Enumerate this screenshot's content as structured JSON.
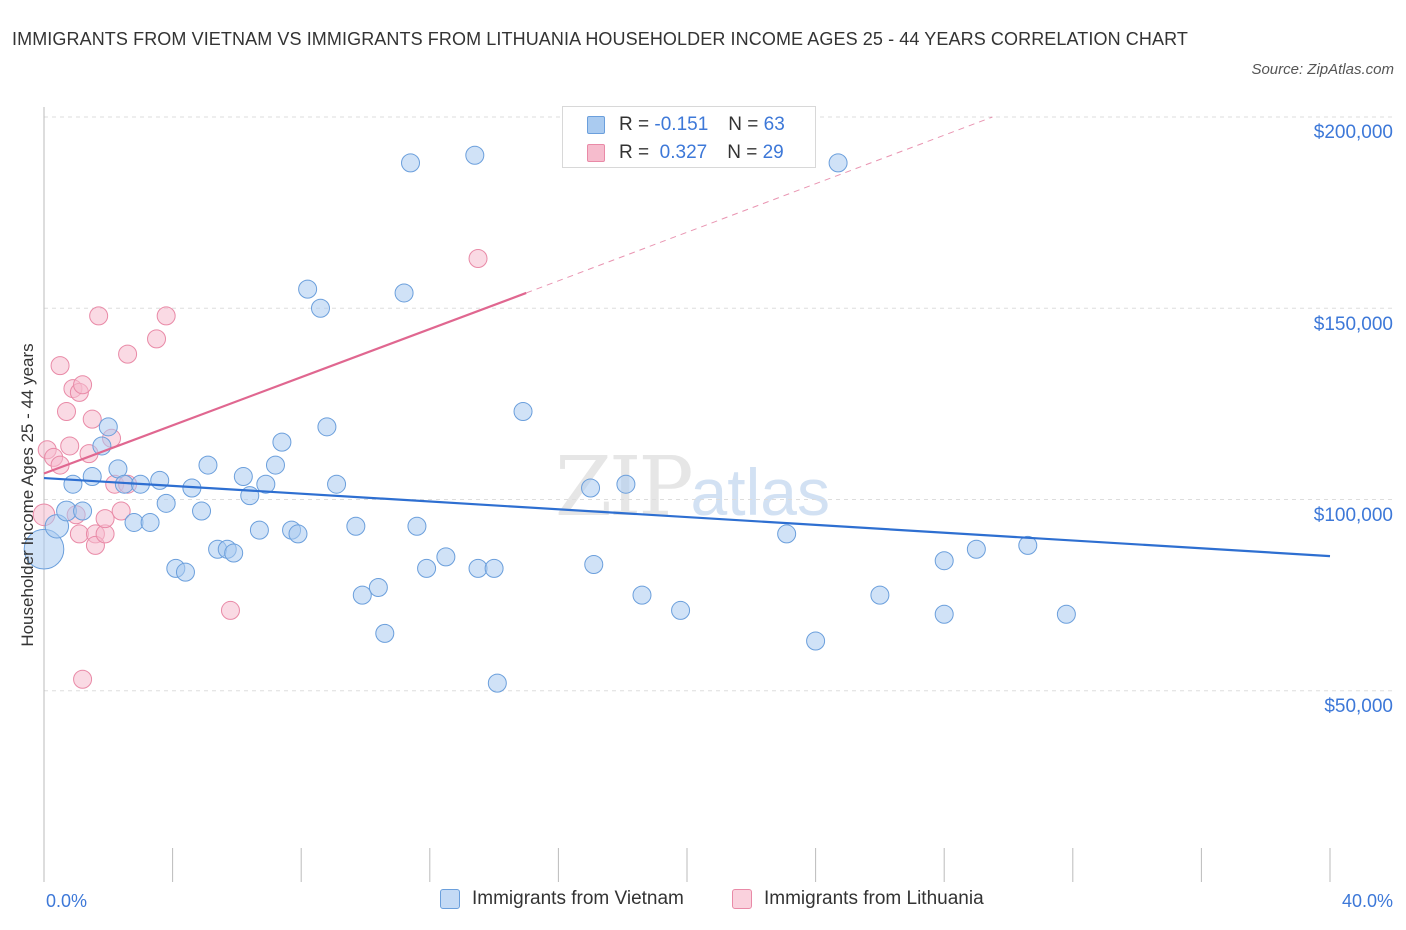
{
  "title": "IMMIGRANTS FROM VIETNAM VS IMMIGRANTS FROM LITHUANIA HOUSEHOLDER INCOME AGES 25 - 44 YEARS CORRELATION CHART",
  "source": "Source: ZipAtlas.com",
  "watermark": {
    "zip": "ZIP",
    "atlas": "atlas"
  },
  "legend_top": {
    "rows": [
      {
        "r_label": "R =",
        "r_value": "-0.151",
        "n_label": "N =",
        "n_value": "63"
      },
      {
        "r_label": "R =",
        "r_value": "0.327",
        "n_label": "N =",
        "n_value": "29"
      }
    ]
  },
  "legend_bottom": {
    "items": [
      {
        "label": "Immigrants from Vietnam"
      },
      {
        "label": "Immigrants from Lithuania"
      }
    ]
  },
  "colors": {
    "vietnam_fill": "#aacbf0",
    "vietnam_stroke": "#6b9fdc",
    "vietnam_line": "#2e6fd1",
    "lithuania_fill": "#f6bccd",
    "lithuania_stroke": "#e98aa7",
    "lithuania_line": "#e06790",
    "axis_text": "#3d78d8",
    "grid": "#dddddd"
  },
  "chart_data": {
    "type": "scatter",
    "title": "IMMIGRANTS FROM VIETNAM VS IMMIGRANTS FROM LITHUANIA HOUSEHOLDER INCOME AGES 25 - 44 YEARS CORRELATION CHART",
    "xlabel": "",
    "ylabel": "Householder Income Ages 25 - 44 years",
    "xlim": [
      0,
      40
    ],
    "ylim": [
      0,
      200000
    ],
    "x_tick_labels": [
      "0.0%",
      "40.0%"
    ],
    "y_ticks": [
      50000,
      100000,
      150000,
      200000
    ],
    "y_tick_labels": [
      "$50,000",
      "$100,000",
      "$150,000",
      "$200,000"
    ],
    "grid": true,
    "legend_position": "top-center",
    "series": [
      {
        "name": "Immigrants from Vietnam",
        "r": -0.151,
        "n": 63,
        "trend": {
          "x": [
            0,
            40
          ],
          "y": [
            105600,
            85200
          ]
        },
        "points": [
          [
            0.0,
            87000,
            2.2
          ],
          [
            0.4,
            93000,
            1.3
          ],
          [
            0.7,
            97000,
            1.1
          ],
          [
            0.9,
            104000,
            1.0
          ],
          [
            1.2,
            97000,
            1.0
          ],
          [
            1.5,
            106000,
            1.0
          ],
          [
            1.8,
            114000,
            1.0
          ],
          [
            2.0,
            119000,
            1.0
          ],
          [
            2.3,
            108000,
            1.0
          ],
          [
            2.5,
            104000,
            1.0
          ],
          [
            2.8,
            94000,
            1.0
          ],
          [
            3.0,
            104000,
            1.0
          ],
          [
            3.3,
            94000,
            1.0
          ],
          [
            3.6,
            105000,
            1.0
          ],
          [
            3.8,
            99000,
            1.0
          ],
          [
            4.1,
            82000,
            1.0
          ],
          [
            4.4,
            81000,
            1.0
          ],
          [
            4.6,
            103000,
            1.0
          ],
          [
            4.9,
            97000,
            1.0
          ],
          [
            5.1,
            109000,
            1.0
          ],
          [
            5.4,
            87000,
            1.0
          ],
          [
            5.7,
            87000,
            1.0
          ],
          [
            5.9,
            86000,
            1.0
          ],
          [
            6.2,
            106000,
            1.0
          ],
          [
            6.4,
            101000,
            1.0
          ],
          [
            6.7,
            92000,
            1.0
          ],
          [
            6.9,
            104000,
            1.0
          ],
          [
            7.2,
            109000,
            1.0
          ],
          [
            7.4,
            115000,
            1.0
          ],
          [
            7.7,
            92000,
            1.0
          ],
          [
            7.9,
            91000,
            1.0
          ],
          [
            8.2,
            155000,
            1.0
          ],
          [
            8.6,
            150000,
            1.0
          ],
          [
            8.8,
            119000,
            1.0
          ],
          [
            9.1,
            104000,
            1.0
          ],
          [
            9.7,
            93000,
            1.0
          ],
          [
            9.9,
            75000,
            1.0
          ],
          [
            10.4,
            77000,
            1.0
          ],
          [
            10.6,
            65000,
            1.0
          ],
          [
            11.2,
            154000,
            1.0
          ],
          [
            11.4,
            188000,
            1.0
          ],
          [
            11.6,
            93000,
            1.0
          ],
          [
            11.9,
            82000,
            1.0
          ],
          [
            12.5,
            85000,
            1.0
          ],
          [
            13.4,
            190000,
            1.0
          ],
          [
            13.5,
            82000,
            1.0
          ],
          [
            14.0,
            82000,
            1.0
          ],
          [
            14.1,
            52000,
            1.0
          ],
          [
            14.9,
            123000,
            1.0
          ],
          [
            17.0,
            103000,
            1.0
          ],
          [
            17.1,
            83000,
            1.0
          ],
          [
            18.1,
            104000,
            1.0
          ],
          [
            18.6,
            75000,
            1.0
          ],
          [
            19.8,
            71000,
            1.0
          ],
          [
            23.1,
            91000,
            1.0
          ],
          [
            24.0,
            63000,
            1.0
          ],
          [
            24.7,
            188000,
            1.0
          ],
          [
            26.0,
            75000,
            1.0
          ],
          [
            28.0,
            84000,
            1.0
          ],
          [
            28.0,
            70000,
            1.0
          ],
          [
            29.0,
            87000,
            1.0
          ],
          [
            30.6,
            88000,
            1.0
          ],
          [
            31.8,
            70000,
            1.0
          ]
        ]
      },
      {
        "name": "Immigrants from Lithuania",
        "r": 0.327,
        "n": 29,
        "trend": {
          "x": [
            0,
            15
          ],
          "y": [
            106800,
            154000
          ],
          "dashed_to": {
            "x": 29.5,
            "y": 200000
          }
        },
        "points": [
          [
            0.0,
            96000,
            1.2
          ],
          [
            0.1,
            113000,
            1.0
          ],
          [
            0.3,
            111000,
            1.0
          ],
          [
            0.5,
            109000,
            1.0
          ],
          [
            0.5,
            135000,
            1.0
          ],
          [
            0.7,
            123000,
            1.0
          ],
          [
            0.8,
            114000,
            1.0
          ],
          [
            0.9,
            129000,
            1.0
          ],
          [
            1.0,
            96000,
            1.0
          ],
          [
            1.1,
            128000,
            1.0
          ],
          [
            1.1,
            91000,
            1.0
          ],
          [
            1.2,
            53000,
            1.0
          ],
          [
            1.2,
            130000,
            1.0
          ],
          [
            1.4,
            112000,
            1.0
          ],
          [
            1.5,
            121000,
            1.0
          ],
          [
            1.6,
            91000,
            1.0
          ],
          [
            1.6,
            88000,
            1.0
          ],
          [
            1.7,
            148000,
            1.0
          ],
          [
            1.9,
            91000,
            1.0
          ],
          [
            1.9,
            95000,
            1.0
          ],
          [
            2.1,
            116000,
            1.0
          ],
          [
            2.2,
            104000,
            1.0
          ],
          [
            2.4,
            97000,
            1.0
          ],
          [
            2.6,
            104000,
            1.0
          ],
          [
            2.6,
            138000,
            1.0
          ],
          [
            3.5,
            142000,
            1.0
          ],
          [
            3.8,
            148000,
            1.0
          ],
          [
            5.8,
            71000,
            1.0
          ],
          [
            13.5,
            163000,
            1.0
          ]
        ]
      }
    ]
  }
}
